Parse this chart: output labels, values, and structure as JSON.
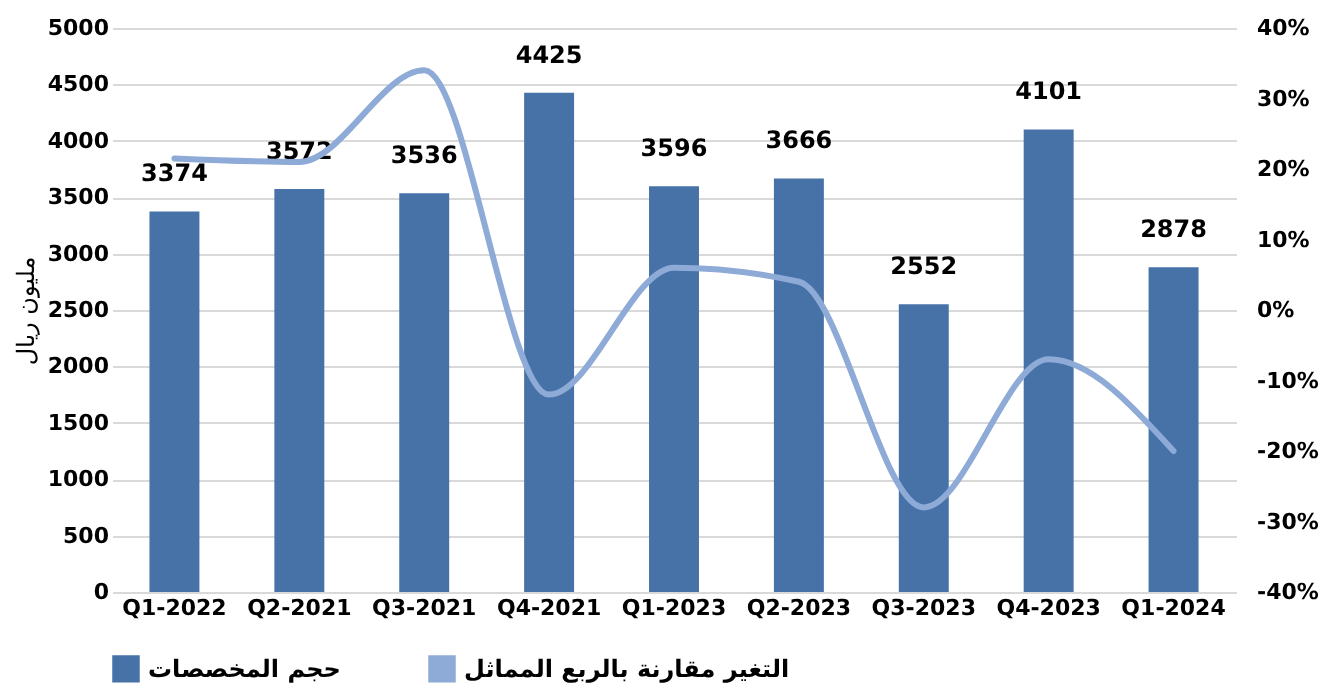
{
  "chart_data": {
    "type": "bar",
    "ylabel": "مليون ريال",
    "categories": [
      "Q1-2022",
      "Q2-2021",
      "Q3-2021",
      "Q4-2021",
      "Q1-2023",
      "Q2-2023",
      "Q3-2023",
      "Q4-2023",
      "Q1-2024"
    ],
    "series": [
      {
        "name": "حجم المخصصات",
        "color": "#4672a8",
        "values": [
          3374,
          3572,
          3536,
          4425,
          3596,
          3666,
          2552,
          4101,
          2878
        ],
        "value_labels": [
          "3374",
          "3572",
          "3536",
          "4425",
          "3596",
          "3666",
          "2552",
          "4101",
          "2878"
        ]
      },
      {
        "name": "التغير مقارنة بالربع المماثل",
        "type": "line",
        "axis": "y2",
        "color": "#8eaad6",
        "values": [
          21.5,
          21,
          34,
          -12,
          6,
          4,
          -28,
          -7,
          -20
        ]
      }
    ],
    "ylim": [
      0,
      5000
    ],
    "yticks": [
      0,
      500,
      1000,
      1500,
      2000,
      2500,
      3000,
      3500,
      4000,
      4500,
      5000
    ],
    "y2lim": [
      -40,
      40
    ],
    "y2ticks": [
      {
        "value": -40,
        "label": "-40%"
      },
      {
        "value": -30,
        "label": "-30%"
      },
      {
        "value": -20,
        "label": "-20%"
      },
      {
        "value": -10,
        "label": "-10%"
      },
      {
        "value": 0,
        "label": "0%"
      },
      {
        "value": 10,
        "label": "10%"
      },
      {
        "value": 20,
        "label": "20%"
      },
      {
        "value": 30,
        "label": "30%"
      },
      {
        "value": 40,
        "label": "40%"
      }
    ],
    "grid": "y",
    "legend": "bottom"
  }
}
